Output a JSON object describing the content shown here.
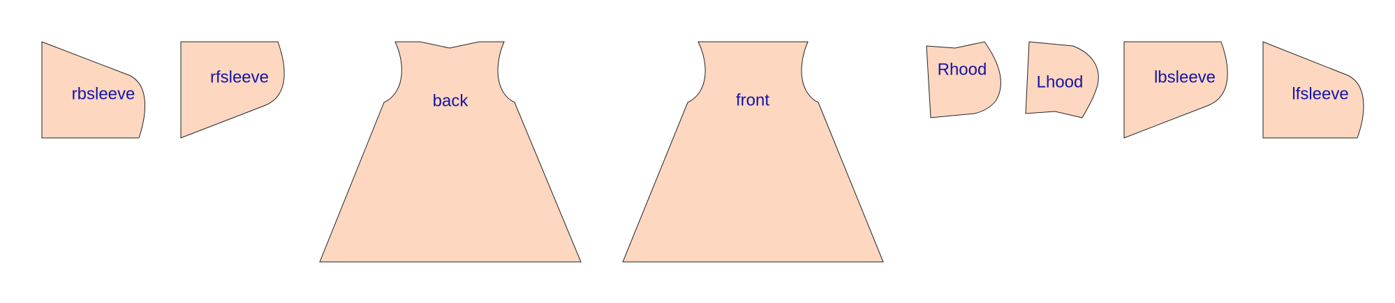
{
  "colors": {
    "piece_fill": "#fdd7c0",
    "piece_stroke": "#222222",
    "label_color": "#1414a8",
    "background": "#ffffff"
  },
  "pieces": {
    "rbsleeve": {
      "label": "rbsleeve"
    },
    "rfsleeve": {
      "label": "rfsleeve"
    },
    "back": {
      "label": "back"
    },
    "front": {
      "label": "front"
    },
    "rhood": {
      "label": "Rhood"
    },
    "lhood": {
      "label": "Lhood"
    },
    "lbsleeve": {
      "label": "lbsleeve"
    },
    "lfsleeve": {
      "label": "lfsleeve"
    }
  }
}
